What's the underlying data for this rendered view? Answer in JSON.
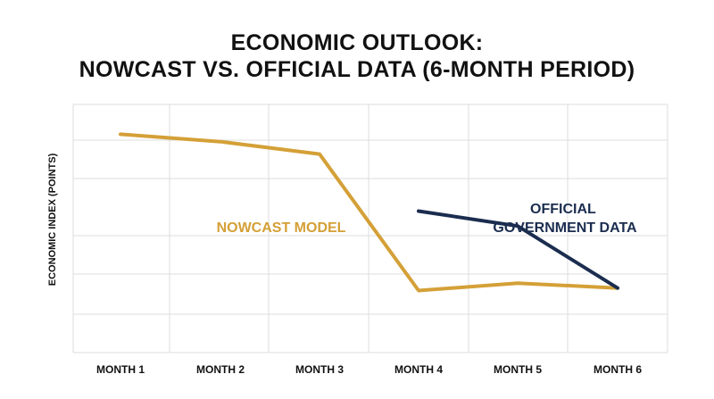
{
  "chart_data": {
    "type": "line",
    "title_line1": "ECONOMIC OUTLOOK:",
    "title_line2": "NOWCAST VS. OFFICIAL DATA (6-MONTH PERIOD)",
    "xlabel": "",
    "ylabel": "ECONOMIC INDEX (POINTS)",
    "categories": [
      "MONTH 1",
      "MONTH 2",
      "MONTH 3",
      "MONTH 4",
      "MONTH 5",
      "MONTH 6"
    ],
    "ylim": [
      0,
      100
    ],
    "grid": true,
    "series": [
      {
        "name": "NOWCAST MODEL",
        "color": "#D4A037",
        "values": [
          88,
          85,
          80,
          25,
          28,
          26
        ]
      },
      {
        "name_lines": [
          "OFFICIAL",
          "GOVERNMENT DATA"
        ],
        "color": "#1B2D4F",
        "values": [
          null,
          null,
          null,
          57,
          51,
          26
        ]
      }
    ]
  }
}
